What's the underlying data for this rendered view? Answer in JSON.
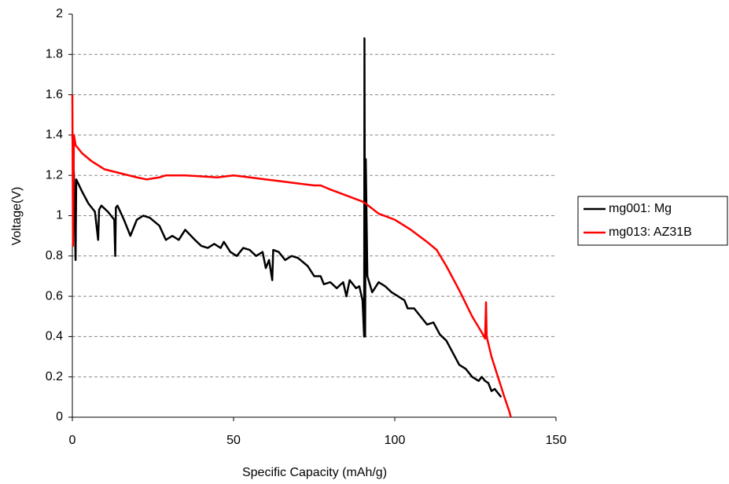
{
  "chart_data": {
    "type": "line",
    "x_label": "Specific Capacity (mAh/g)",
    "y_label": "Voltage(V)",
    "xlim": [
      0,
      150
    ],
    "xticks": [
      0,
      50,
      100,
      150
    ],
    "ylim": [
      0,
      2
    ],
    "yticks": [
      0,
      0.2,
      0.4,
      0.6,
      0.8,
      1,
      1.2,
      1.4,
      1.6,
      1.8,
      2
    ],
    "grid": true,
    "legend": "right",
    "series": [
      {
        "name": "mg001: Mg",
        "color": "#000000",
        "x": [
          0,
          0.5,
          1,
          1.2,
          3,
          5,
          7,
          8,
          8.3,
          9,
          11,
          13,
          13.3,
          13.5,
          14,
          16,
          18,
          20,
          22,
          24,
          27,
          29,
          31,
          33,
          35,
          38,
          40,
          42,
          44,
          46,
          47,
          49,
          51,
          53,
          55,
          57,
          59,
          60,
          61,
          62,
          62.3,
          64,
          66,
          68,
          70,
          73,
          75,
          77,
          78,
          80,
          82,
          84,
          85,
          86,
          87,
          88,
          89,
          90,
          90.5,
          90.6,
          90.8,
          91,
          91.5,
          93,
          95,
          97,
          99,
          101,
          103,
          104,
          106,
          108,
          110,
          112,
          114,
          116,
          118,
          120,
          122,
          124,
          126,
          127,
          128,
          129,
          130,
          131,
          132,
          133
        ],
        "values": [
          1.4,
          1.2,
          0.78,
          1.18,
          1.12,
          1.06,
          1.02,
          0.88,
          1.03,
          1.05,
          1.02,
          0.98,
          0.8,
          1.04,
          1.05,
          0.98,
          0.9,
          0.98,
          1.0,
          0.99,
          0.95,
          0.88,
          0.9,
          0.88,
          0.93,
          0.88,
          0.85,
          0.84,
          0.86,
          0.84,
          0.87,
          0.82,
          0.8,
          0.84,
          0.83,
          0.8,
          0.82,
          0.74,
          0.78,
          0.68,
          0.83,
          0.82,
          0.78,
          0.8,
          0.79,
          0.75,
          0.7,
          0.7,
          0.66,
          0.67,
          0.64,
          0.67,
          0.6,
          0.68,
          0.66,
          0.64,
          0.65,
          0.58,
          0.4,
          1.88,
          0.4,
          1.28,
          0.7,
          0.62,
          0.67,
          0.65,
          0.62,
          0.6,
          0.58,
          0.54,
          0.54,
          0.5,
          0.46,
          0.47,
          0.41,
          0.38,
          0.32,
          0.26,
          0.24,
          0.2,
          0.18,
          0.2,
          0.18,
          0.17,
          0.13,
          0.14,
          0.12,
          0.1
        ]
      },
      {
        "name": "mg013: AZ31B",
        "color": "#ff0000",
        "x": [
          0,
          0.2,
          0.5,
          1,
          3,
          6,
          10,
          15,
          20,
          23,
          27,
          29,
          35,
          45,
          50,
          55,
          60,
          65,
          70,
          75,
          77,
          80,
          85,
          90,
          91,
          95,
          100,
          105,
          110,
          113,
          116,
          120,
          124,
          127,
          128,
          128.3,
          128.5,
          130,
          132,
          134,
          135.5,
          136
        ],
        "values": [
          1.6,
          0.85,
          1.4,
          1.35,
          1.31,
          1.27,
          1.23,
          1.21,
          1.19,
          1.18,
          1.19,
          1.2,
          1.2,
          1.19,
          1.2,
          1.19,
          1.18,
          1.17,
          1.16,
          1.15,
          1.15,
          1.13,
          1.1,
          1.07,
          1.06,
          1.01,
          0.98,
          0.93,
          0.87,
          0.83,
          0.75,
          0.63,
          0.5,
          0.42,
          0.39,
          0.57,
          0.4,
          0.3,
          0.2,
          0.1,
          0.03,
          0
        ]
      }
    ]
  }
}
